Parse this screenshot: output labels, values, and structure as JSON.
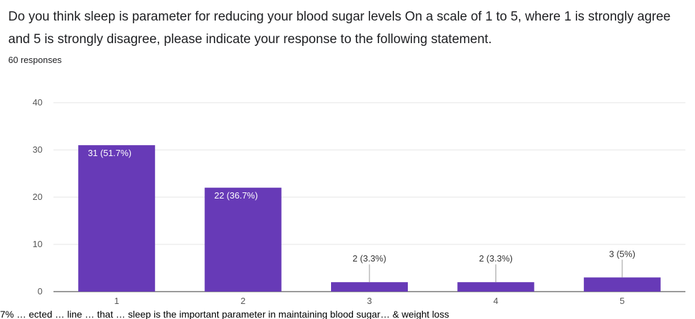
{
  "question": {
    "title": "Do you think sleep is parameter for reducing your blood sugar levels  On a scale of 1 to 5, where 1 is strongly agree and 5 is strongly disagree, please indicate your response to the following statement.",
    "response_count": "60 responses"
  },
  "colors": {
    "bar": "#673ab7",
    "grid": "#e6e6e6"
  },
  "chart_data": {
    "type": "bar",
    "title": "",
    "xlabel": "",
    "ylabel": "",
    "categories": [
      "1",
      "2",
      "3",
      "4",
      "5"
    ],
    "values": [
      31,
      22,
      2,
      2,
      3
    ],
    "data_labels": [
      "31 (51.7%)",
      "22 (36.7%)",
      "2 (3.3%)",
      "2 (3.3%)",
      "3 (5%)"
    ],
    "ylim": [
      0,
      40
    ],
    "yticks": [
      0,
      10,
      20,
      30,
      40
    ],
    "grid": true,
    "legend": "none"
  },
  "caption_fragment": "7% … ected … line … that … sleep is the important parameter in maintaining blood sugar… & weight loss"
}
